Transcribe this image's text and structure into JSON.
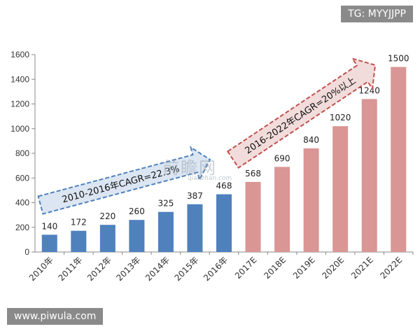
{
  "chart_data": {
    "type": "bar",
    "title": "",
    "xlabel": "",
    "ylabel": "",
    "ylim": [
      0,
      1600
    ],
    "yticks": [
      0,
      200,
      400,
      600,
      800,
      1000,
      1200,
      1400,
      1600
    ],
    "grid": false,
    "legend": "none",
    "categories": [
      "2010年",
      "2011年",
      "2012年",
      "2013年",
      "2014年",
      "2015年",
      "2016年",
      "2017E",
      "2018E",
      "2019E",
      "2020E",
      "2021E",
      "2022E"
    ],
    "values": [
      140,
      172,
      220,
      260,
      325,
      387,
      468,
      568,
      690,
      840,
      1020,
      1240,
      1500
    ],
    "bar_colors": [
      "#4f81bd",
      "#4f81bd",
      "#4f81bd",
      "#4f81bd",
      "#4f81bd",
      "#4f81bd",
      "#4f81bd",
      "#d99694",
      "#d99694",
      "#d99694",
      "#d99694",
      "#d99694",
      "#d99694"
    ],
    "annotations": [
      {
        "text": "2010-2016年CAGR=22.3%",
        "fill": "#dce6f2",
        "stroke": "#4f81bd"
      },
      {
        "text": "2016-2022年CAGR=20%以上",
        "fill": "#f2dcdb",
        "stroke": "#c0504d"
      }
    ]
  },
  "watermarks": {
    "top_right": "TG: MYYJJPP",
    "bottom_left": "www.piwula.com",
    "center": "前瞻网",
    "center_sub": "qianzhan.com"
  }
}
